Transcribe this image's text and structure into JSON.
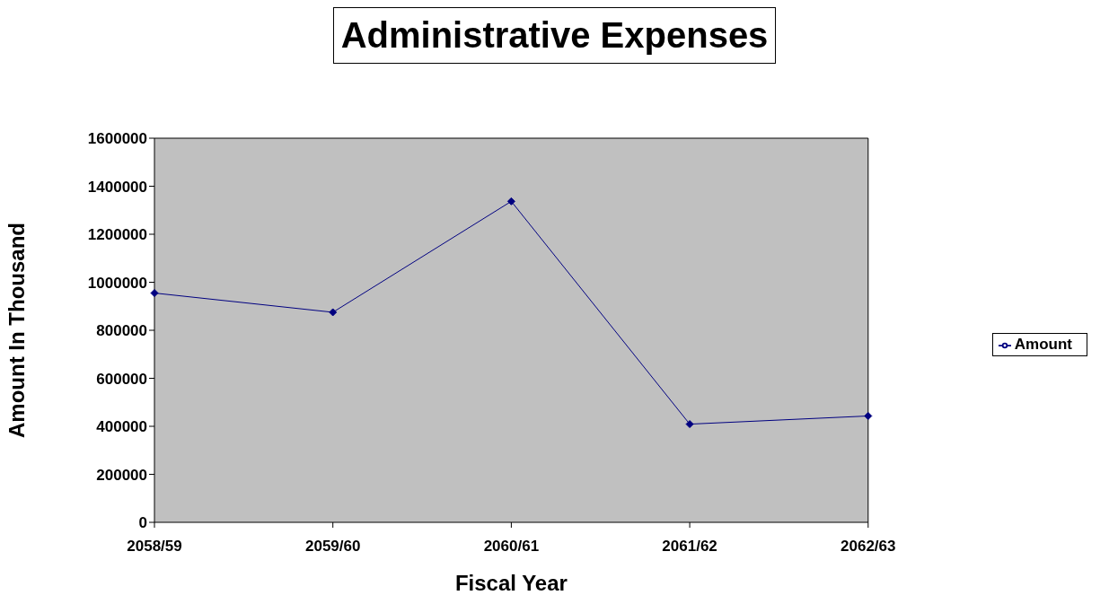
{
  "chart_data": {
    "type": "line",
    "title": "Administrative Expenses",
    "xlabel": "Fiscal Year",
    "ylabel": "Amount In Thousand",
    "categories": [
      "2058/59",
      "2059/60",
      "2060/61",
      "2061/62",
      "2062/63"
    ],
    "series": [
      {
        "name": "Amount",
        "color": "#000080",
        "values": [
          955000,
          875000,
          1337000,
          409000,
          443000
        ]
      }
    ],
    "ylim": [
      0,
      1600000
    ],
    "yticks": [
      0,
      200000,
      400000,
      600000,
      800000,
      1000000,
      1200000,
      1400000,
      1600000
    ],
    "grid": false,
    "legend": "right",
    "marker": "diamond",
    "line_style": "solid"
  }
}
